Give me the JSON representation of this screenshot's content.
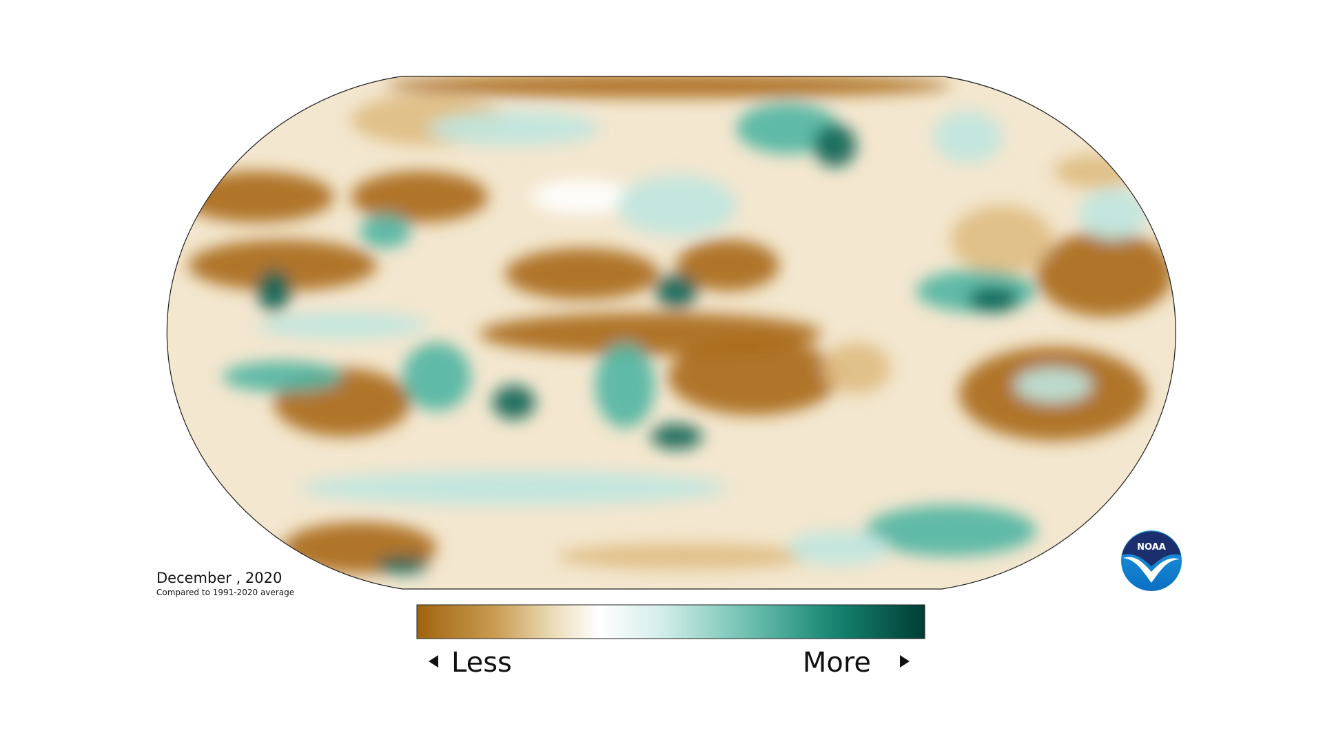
{
  "date": "December , 2020",
  "subtitle": "Compared to 1991-2020 average",
  "legend": {
    "low": "Less",
    "high": "More"
  },
  "logo": "NOAA"
}
